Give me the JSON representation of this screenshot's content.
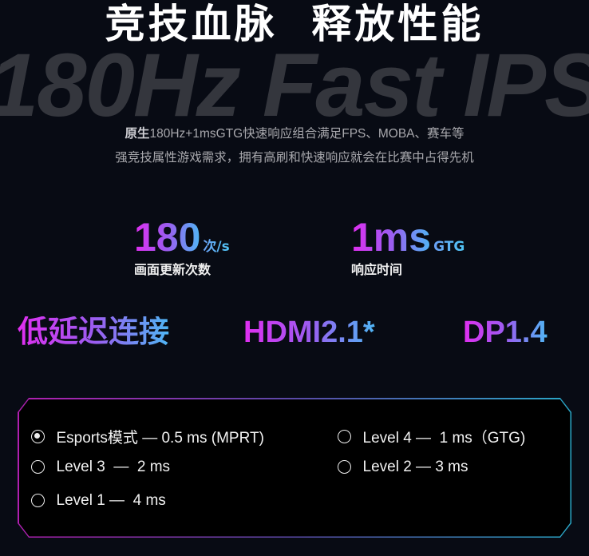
{
  "watermark": "180Hz Fast IPS",
  "title": "竞技血脉  释放性能",
  "description": {
    "line1_bold": "原生",
    "line1_rest": "180Hz+1msGTG快速响应组合满足FPS、MOBA、赛车等",
    "line2": "强竞技属性游戏需求，拥有高刷和快速响应就会在比赛中占得先机"
  },
  "stats": [
    {
      "value": "180",
      "unit": "次/s",
      "label": "画面更新次数"
    },
    {
      "value": "1ms",
      "unit": "GTG",
      "label": "响应时间"
    }
  ],
  "connectivity": {
    "label": "低延迟连接",
    "ports": [
      "HDMI2.1*",
      "DP1.4"
    ]
  },
  "response_modes": {
    "selected": "Esports模式 — 0.5 ms (MPRT)",
    "options": [
      "Esports模式 — 0.5 ms (MPRT)",
      "Level 4 —  1 ms（GTG)",
      "Level 3  —  2 ms",
      "Level 2 — 3 ms",
      "Level 1 —  4 ms"
    ]
  },
  "colors": {
    "background": "#080b14",
    "gradient_start": "#e02ef0",
    "gradient_end": "#4fb6f5"
  }
}
